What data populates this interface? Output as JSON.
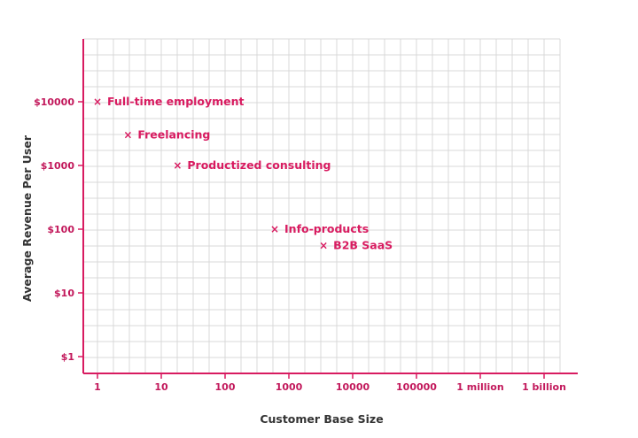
{
  "chart_data": {
    "type": "scatter",
    "title": "",
    "xlabel": "Customer Base Size",
    "ylabel": "Average Revenue Per User",
    "x_scale": "log",
    "y_scale": "log",
    "grid": true,
    "colors": {
      "accent": "#d81b60",
      "grid": "#d9d9d9",
      "axis_title": "#333333"
    },
    "x_ticks": [
      {
        "value": 1,
        "label": "1"
      },
      {
        "value": 10,
        "label": "10"
      },
      {
        "value": 100,
        "label": "100"
      },
      {
        "value": 1000,
        "label": "1000"
      },
      {
        "value": 10000,
        "label": "10000"
      },
      {
        "value": 100000,
        "label": "100000"
      },
      {
        "value": 1000000,
        "label": "1 million"
      },
      {
        "value": 1000000000,
        "label": "1 billion"
      }
    ],
    "y_ticks": [
      {
        "value": 1,
        "label": "$1"
      },
      {
        "value": 10,
        "label": "$10"
      },
      {
        "value": 100,
        "label": "$100"
      },
      {
        "value": 1000,
        "label": "$1000"
      },
      {
        "value": 10000,
        "label": "$10000"
      }
    ],
    "points": [
      {
        "label": "Full-time employment",
        "x": 1,
        "y": 10000
      },
      {
        "label": "Freelancing",
        "x": 3,
        "y": 3000
      },
      {
        "label": "Productized consulting",
        "x": 18,
        "y": 1000
      },
      {
        "label": "Info-products",
        "x": 600,
        "y": 100
      },
      {
        "label": "B2B SaaS",
        "x": 3500,
        "y": 55
      }
    ]
  }
}
